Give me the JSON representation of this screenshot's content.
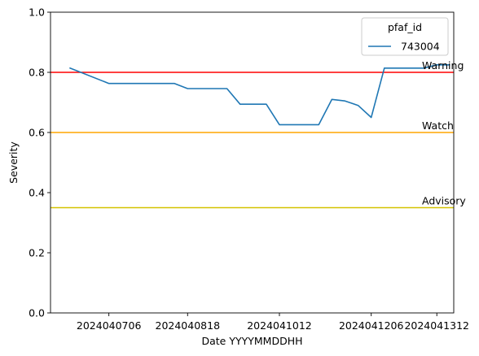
{
  "chart_data": {
    "type": "line",
    "title": "",
    "xlabel": "Date YYYYMMDDHH",
    "ylabel": "Severity",
    "ylim": [
      0,
      1.0
    ],
    "y_ticks": [
      "0.0",
      "0.2",
      "0.4",
      "0.6",
      "0.8",
      "1.0"
    ],
    "x_tick_labels": [
      "2024040706",
      "2024040818",
      "2024041012",
      "2024041206",
      "2024041312"
    ],
    "grid": false,
    "legend": {
      "title": "pfaf_id",
      "placement": "top-right"
    },
    "series": [
      {
        "name": "743004",
        "color": "#1f77b4",
        "points": [
          {
            "x": "2024040612",
            "y": 0.815
          },
          {
            "x": "2024040706",
            "y": 0.763
          },
          {
            "x": "2024040712",
            "y": 0.763
          },
          {
            "x": "2024040718",
            "y": 0.763
          },
          {
            "x": "2024040800",
            "y": 0.763
          },
          {
            "x": "2024040806",
            "y": 0.763
          },
          {
            "x": "2024040812",
            "y": 0.763
          },
          {
            "x": "2024040818",
            "y": 0.746
          },
          {
            "x": "2024040900",
            "y": 0.746
          },
          {
            "x": "2024040906",
            "y": 0.746
          },
          {
            "x": "2024040912",
            "y": 0.746
          },
          {
            "x": "2024040918",
            "y": 0.694
          },
          {
            "x": "2024041000",
            "y": 0.694
          },
          {
            "x": "2024041006",
            "y": 0.694
          },
          {
            "x": "2024041012",
            "y": 0.626
          },
          {
            "x": "2024041018",
            "y": 0.626
          },
          {
            "x": "2024041100",
            "y": 0.626
          },
          {
            "x": "2024041106",
            "y": 0.626
          },
          {
            "x": "2024041112",
            "y": 0.71
          },
          {
            "x": "2024041118",
            "y": 0.705
          },
          {
            "x": "2024041200",
            "y": 0.69
          },
          {
            "x": "2024041206",
            "y": 0.65
          },
          {
            "x": "2024041212",
            "y": 0.814
          },
          {
            "x": "2024041218",
            "y": 0.814
          },
          {
            "x": "2024041300",
            "y": 0.814
          },
          {
            "x": "2024041306",
            "y": 0.814
          },
          {
            "x": "2024041312",
            "y": 0.825
          },
          {
            "x": "2024041318",
            "y": 0.825
          }
        ]
      }
    ],
    "thresholds": [
      {
        "label": "Warning",
        "value": 0.8,
        "color": "#ff0000"
      },
      {
        "label": "Watch",
        "value": 0.6,
        "color": "#ffa500"
      },
      {
        "label": "Advisory",
        "value": 0.35,
        "color": "#d4c200"
      }
    ]
  }
}
